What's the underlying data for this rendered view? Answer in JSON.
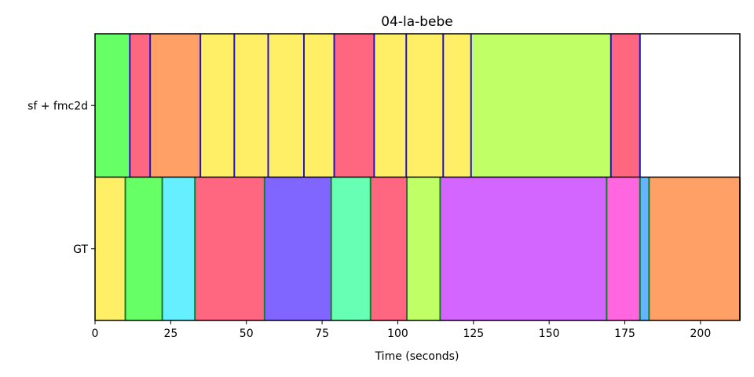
{
  "chart_data": {
    "type": "segment-timeline",
    "title": "04-la-bebe",
    "xlabel": "Time (seconds)",
    "xlim": [
      0,
      213
    ],
    "xticks": [
      0,
      25,
      50,
      75,
      100,
      125,
      150,
      175,
      200
    ],
    "grid": false,
    "rows": [
      {
        "label": "sf + fmc2d",
        "boundary_color": "#1f10d6",
        "segments": [
          {
            "start": 0,
            "end": 11.5,
            "color": "#66ff66"
          },
          {
            "start": 11.5,
            "end": 18.2,
            "color": "#ff667f"
          },
          {
            "start": 18.2,
            "end": 34.8,
            "color": "#ffa066"
          },
          {
            "start": 34.8,
            "end": 46.0,
            "color": "#ffef66"
          },
          {
            "start": 46.0,
            "end": 57.2,
            "color": "#ffef66"
          },
          {
            "start": 57.2,
            "end": 69.0,
            "color": "#ffef66"
          },
          {
            "start": 69.0,
            "end": 79.0,
            "color": "#ffef66"
          },
          {
            "start": 79.0,
            "end": 92.2,
            "color": "#ff667f"
          },
          {
            "start": 92.2,
            "end": 102.8,
            "color": "#ffef66"
          },
          {
            "start": 102.8,
            "end": 115.0,
            "color": "#ffef66"
          },
          {
            "start": 115.0,
            "end": 124.2,
            "color": "#ffef66"
          },
          {
            "start": 124.2,
            "end": 170.4,
            "color": "#c1ff66"
          },
          {
            "start": 170.4,
            "end": 180.0,
            "color": "#ff667f"
          }
        ]
      },
      {
        "label": "GT",
        "boundary_color": "#1a7a2a",
        "segments": [
          {
            "start": 0,
            "end": 10.0,
            "color": "#ffef66"
          },
          {
            "start": 10.0,
            "end": 22.2,
            "color": "#66ff66"
          },
          {
            "start": 22.2,
            "end": 33.0,
            "color": "#66f0ff"
          },
          {
            "start": 33.0,
            "end": 56.0,
            "color": "#ff667f"
          },
          {
            "start": 56.0,
            "end": 78.0,
            "color": "#8066ff"
          },
          {
            "start": 78.0,
            "end": 91.0,
            "color": "#66ffb3"
          },
          {
            "start": 91.0,
            "end": 103.0,
            "color": "#ff667f"
          },
          {
            "start": 103.0,
            "end": 114.0,
            "color": "#c1ff66"
          },
          {
            "start": 114.0,
            "end": 169.0,
            "color": "#d366ff"
          },
          {
            "start": 169.0,
            "end": 180.0,
            "color": "#ff66e0"
          },
          {
            "start": 180.0,
            "end": 183.0,
            "color": "#66b3ff"
          },
          {
            "start": 183.0,
            "end": 213.0,
            "color": "#ffa066"
          }
        ]
      }
    ]
  }
}
